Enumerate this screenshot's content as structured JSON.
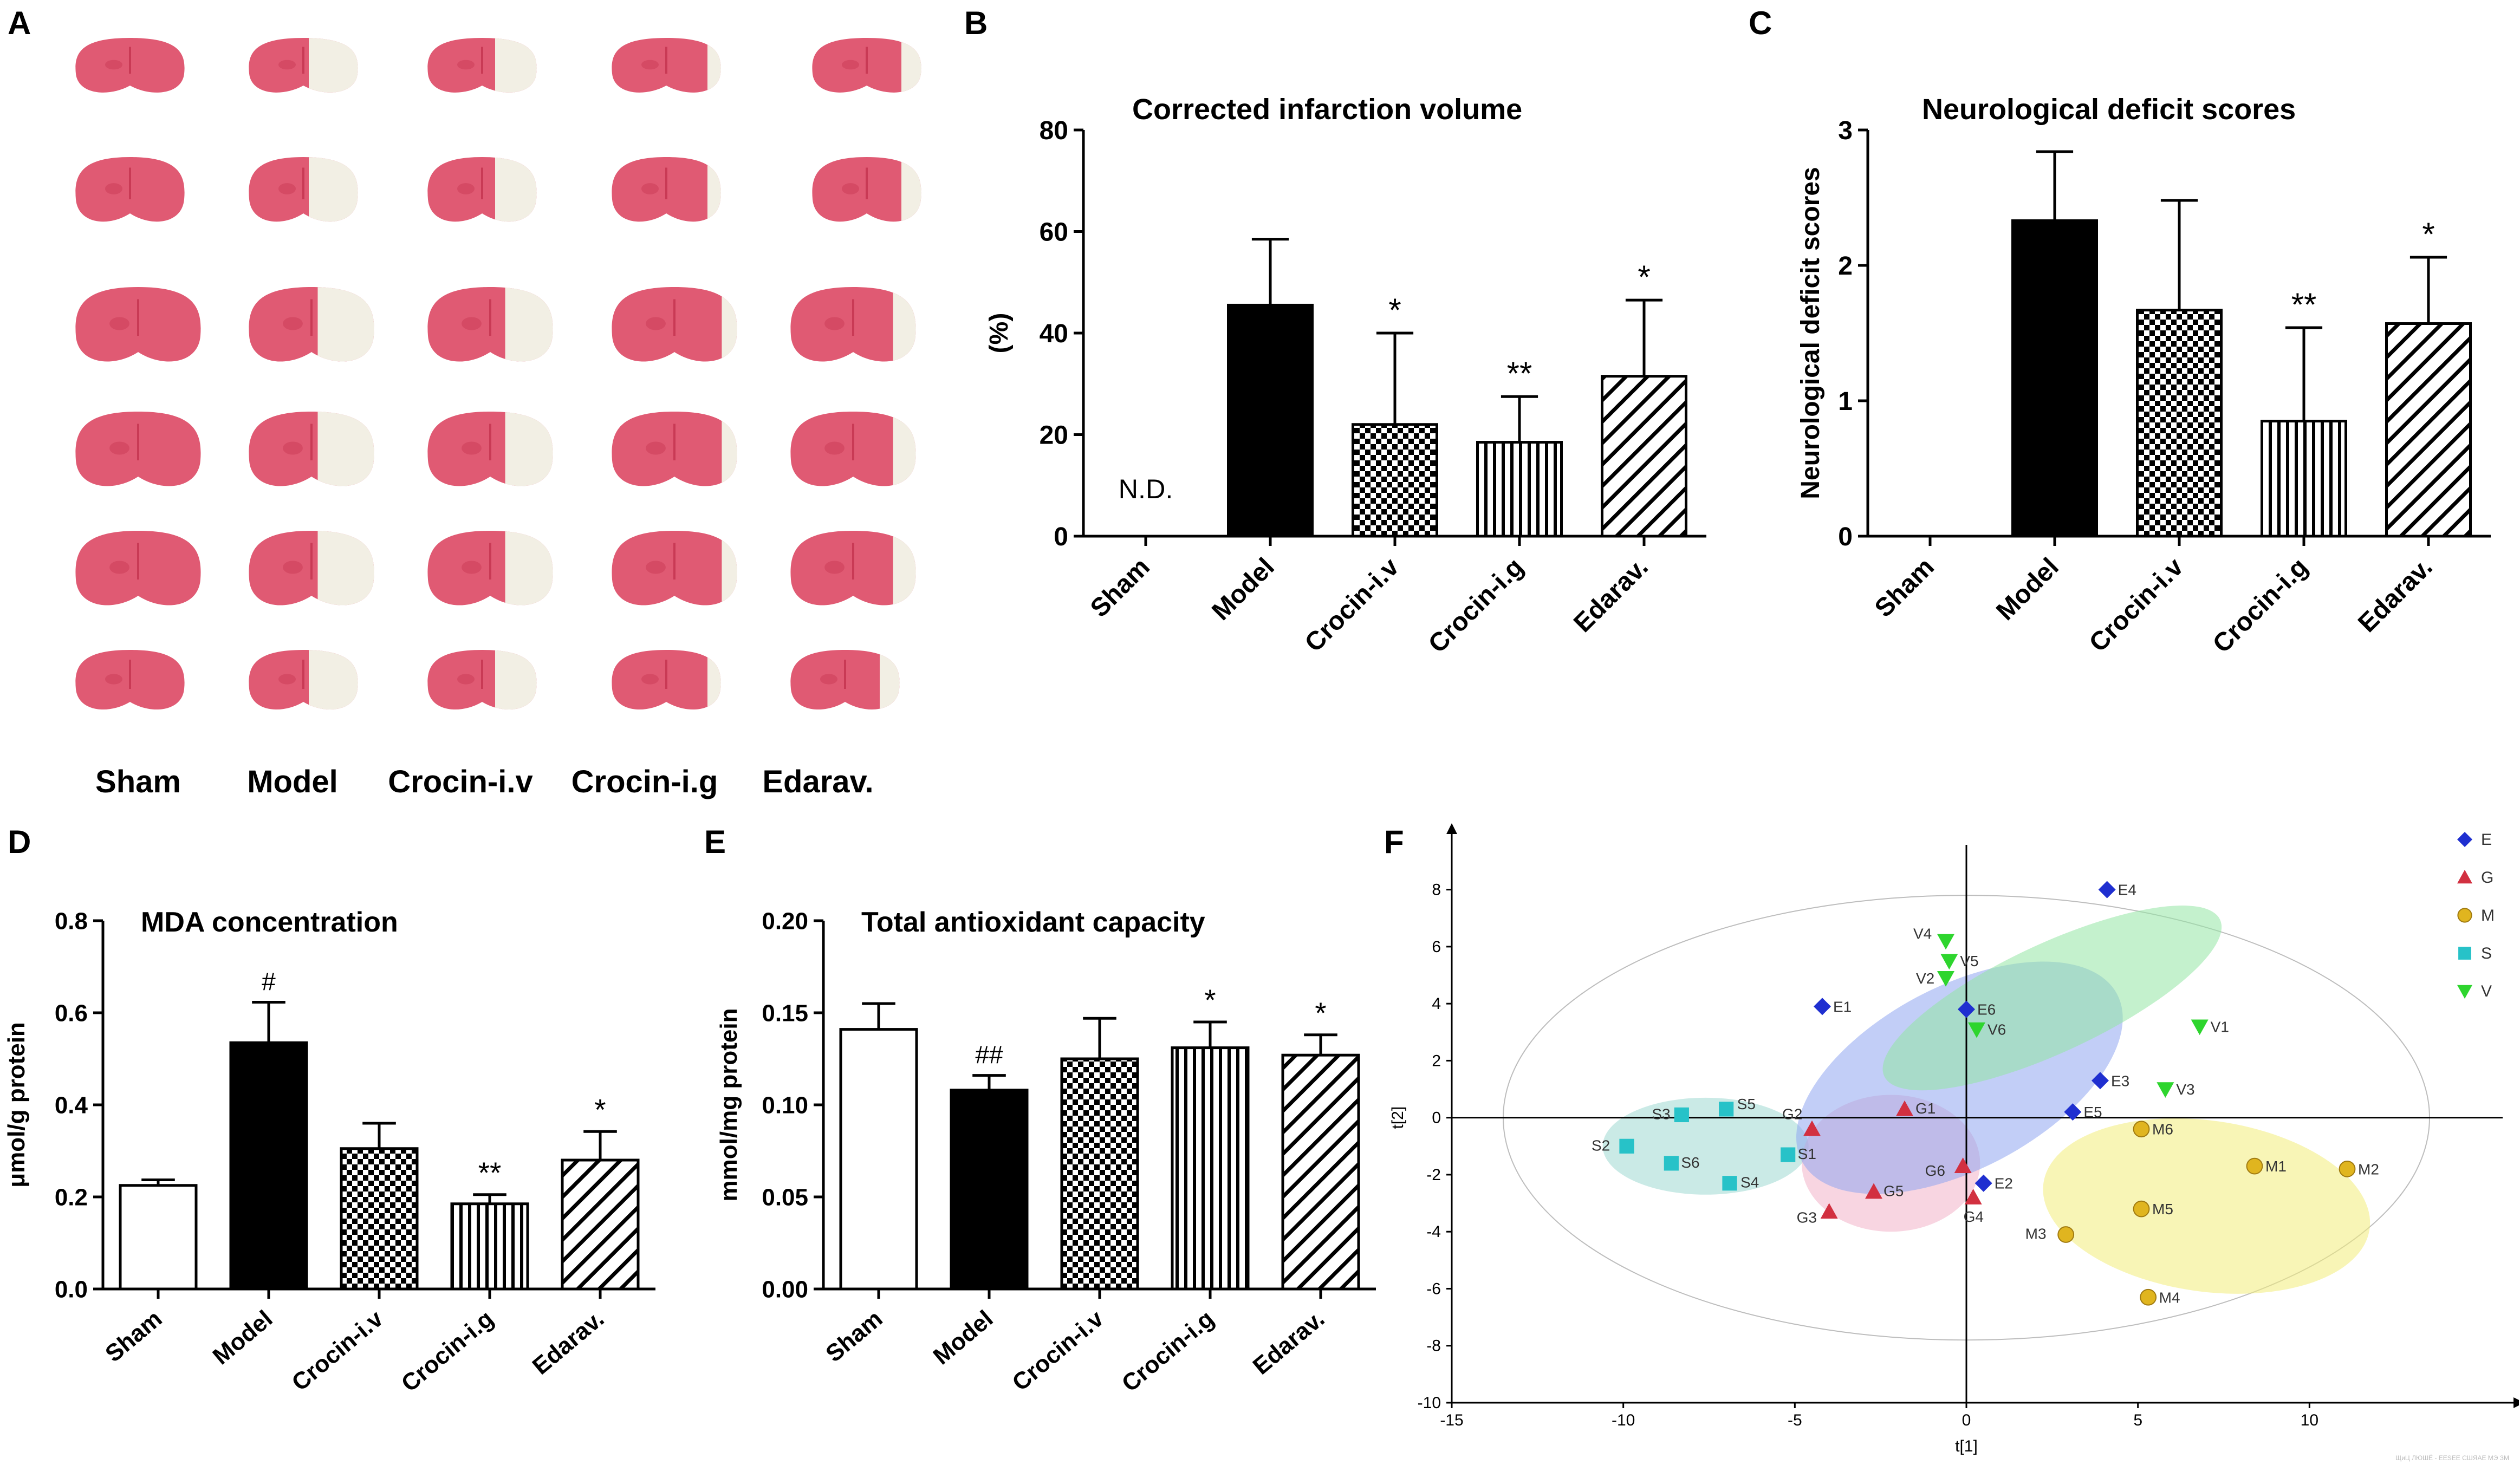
{
  "panels": {
    "A": "A",
    "B": "B",
    "C": "C",
    "D": "D",
    "E": "E",
    "F": "F"
  },
  "brain_section_labels": [
    "Sham",
    "Model",
    "Crocin-i.v",
    "Crocin-i.g",
    "Edarav."
  ],
  "colors": {
    "tissue": "#e05a73",
    "tissue_dark": "#c93a55",
    "infarct": "#f2efe4",
    "pca_E": "#1f2fd0",
    "pca_G": "#d23040",
    "pca_M": "#e0b51f",
    "pca_S": "#27c2c8",
    "pca_V": "#2ed52e"
  },
  "watermark": "ЩиЦ ЛЮШЁ - EESEE СШЯАЕ МЭ ЗМ",
  "chart_data": [
    {
      "id": "B",
      "type": "bar",
      "title": "Corrected infarction volume",
      "ylabel": "(%)",
      "categories": [
        "Sham",
        "Model",
        "Crocin-i.v",
        "Crocin-i.g",
        "Edarav."
      ],
      "values": [
        0,
        45.5,
        22,
        18.5,
        31.5
      ],
      "errors": [
        0,
        13,
        18,
        9,
        15
      ],
      "patterns": [
        "none",
        "solid",
        "checker",
        "vertical",
        "diagonal"
      ],
      "significance": [
        "",
        "",
        "*",
        "**",
        "*"
      ],
      "annotation": "N.D.",
      "ylim": [
        0,
        80
      ],
      "yticks": [
        "0",
        "20",
        "40",
        "60",
        "80"
      ]
    },
    {
      "id": "C",
      "type": "bar",
      "title": "Neurological deficit scores",
      "ylabel": "Neurological deficit scores",
      "categories": [
        "Sham",
        "Model",
        "Crocin-i.v",
        "Crocin-i.g",
        "Edarav."
      ],
      "values": [
        0,
        2.33,
        1.67,
        0.85,
        1.57
      ],
      "errors": [
        0,
        0.51,
        0.81,
        0.69,
        0.49
      ],
      "patterns": [
        "none",
        "solid",
        "checker",
        "vertical",
        "diagonal"
      ],
      "significance": [
        "",
        "",
        "",
        "**",
        "*"
      ],
      "ylim": [
        0,
        3
      ],
      "yticks": [
        "0",
        "1",
        "2",
        "3"
      ]
    },
    {
      "id": "D",
      "type": "bar",
      "title": "MDA concentration",
      "ylabel": "μmol/g protein",
      "categories": [
        "Sham",
        "Model",
        "Crocin-i.v",
        "Crocin-i.g",
        "Edarav."
      ],
      "values": [
        0.225,
        0.535,
        0.305,
        0.185,
        0.28
      ],
      "errors": [
        0.012,
        0.088,
        0.055,
        0.02,
        0.062
      ],
      "patterns": [
        "empty",
        "solid",
        "checker",
        "vertical",
        "diagonal"
      ],
      "significance": [
        "",
        "#",
        "",
        "**",
        "*"
      ],
      "ylim": [
        0,
        0.8
      ],
      "yticks": [
        "0.0",
        "0.2",
        "0.4",
        "0.6",
        "0.8"
      ]
    },
    {
      "id": "E",
      "type": "bar",
      "title": "Total antioxidant capacity",
      "ylabel": "mmol/mg protein",
      "categories": [
        "Sham",
        "Model",
        "Crocin-i.v",
        "Crocin-i.g",
        "Edarav."
      ],
      "values": [
        0.141,
        0.108,
        0.125,
        0.131,
        0.127
      ],
      "errors": [
        0.014,
        0.008,
        0.022,
        0.014,
        0.011
      ],
      "patterns": [
        "empty",
        "solid",
        "checker",
        "vertical",
        "diagonal"
      ],
      "significance": [
        "",
        "##",
        "",
        "*",
        "*"
      ],
      "ylim": [
        0,
        0.2
      ],
      "yticks": [
        "0.00",
        "0.05",
        "0.10",
        "0.15",
        "0.20"
      ]
    },
    {
      "id": "F",
      "type": "scatter",
      "xlabel": "t[1]",
      "ylabel": "t[2]",
      "xlim": [
        -15,
        15
      ],
      "ylim": [
        -10,
        9
      ],
      "xticks": [
        "-15",
        "-10",
        "-5",
        "0",
        "5",
        "10"
      ],
      "yticks": [
        "-10",
        "-8",
        "-6",
        "-4",
        "-2",
        "0",
        "2",
        "4",
        "6",
        "8"
      ],
      "series": [
        {
          "name": "E",
          "marker": "diamond",
          "points": [
            {
              "label": "E1",
              "x": -4.2,
              "y": 3.9
            },
            {
              "label": "E2",
              "x": 0.5,
              "y": -2.3
            },
            {
              "label": "E3",
              "x": 3.9,
              "y": 1.3
            },
            {
              "label": "E4",
              "x": 4.1,
              "y": 8.0
            },
            {
              "label": "E5",
              "x": 3.1,
              "y": 0.2
            },
            {
              "label": "E6",
              "x": 0.0,
              "y": 3.8
            }
          ]
        },
        {
          "name": "G",
          "marker": "triangle",
          "points": [
            {
              "label": "G1",
              "x": -1.8,
              "y": 0.3
            },
            {
              "label": "G2",
              "x": -4.5,
              "y": -0.4
            },
            {
              "label": "G3",
              "x": -4.0,
              "y": -3.3
            },
            {
              "label": "G4",
              "x": 0.2,
              "y": -2.8
            },
            {
              "label": "G5",
              "x": -2.7,
              "y": -2.6
            },
            {
              "label": "G6",
              "x": -0.1,
              "y": -1.7
            }
          ]
        },
        {
          "name": "M",
          "marker": "circle",
          "points": [
            {
              "label": "M1",
              "x": 8.4,
              "y": -1.7
            },
            {
              "label": "M2",
              "x": 11.1,
              "y": -1.8
            },
            {
              "label": "M3",
              "x": 2.9,
              "y": -4.1
            },
            {
              "label": "M4",
              "x": 5.3,
              "y": -6.3
            },
            {
              "label": "M5",
              "x": 5.1,
              "y": -3.2
            },
            {
              "label": "M6",
              "x": 5.1,
              "y": -0.4
            }
          ]
        },
        {
          "name": "S",
          "marker": "square",
          "points": [
            {
              "label": "S1",
              "x": -5.2,
              "y": -1.3
            },
            {
              "label": "S2",
              "x": -9.9,
              "y": -1.0
            },
            {
              "label": "S3",
              "x": -8.3,
              "y": 0.1
            },
            {
              "label": "S4",
              "x": -6.9,
              "y": -2.3
            },
            {
              "label": "S5",
              "x": -7.0,
              "y": 0.3
            },
            {
              "label": "S6",
              "x": -8.6,
              "y": -1.6
            }
          ]
        },
        {
          "name": "V",
          "marker": "triangle-down",
          "points": [
            {
              "label": "V1",
              "x": 6.8,
              "y": 3.2
            },
            {
              "label": "V2",
              "x": -0.6,
              "y": 4.9
            },
            {
              "label": "V3",
              "x": 5.8,
              "y": 1.0
            },
            {
              "label": "V4",
              "x": -0.6,
              "y": 6.2
            },
            {
              "label": "V5",
              "x": -0.5,
              "y": 5.5
            },
            {
              "label": "V6",
              "x": 0.3,
              "y": 3.1
            }
          ]
        }
      ],
      "legend": [
        "E",
        "G",
        "M",
        "S",
        "V"
      ]
    }
  ]
}
